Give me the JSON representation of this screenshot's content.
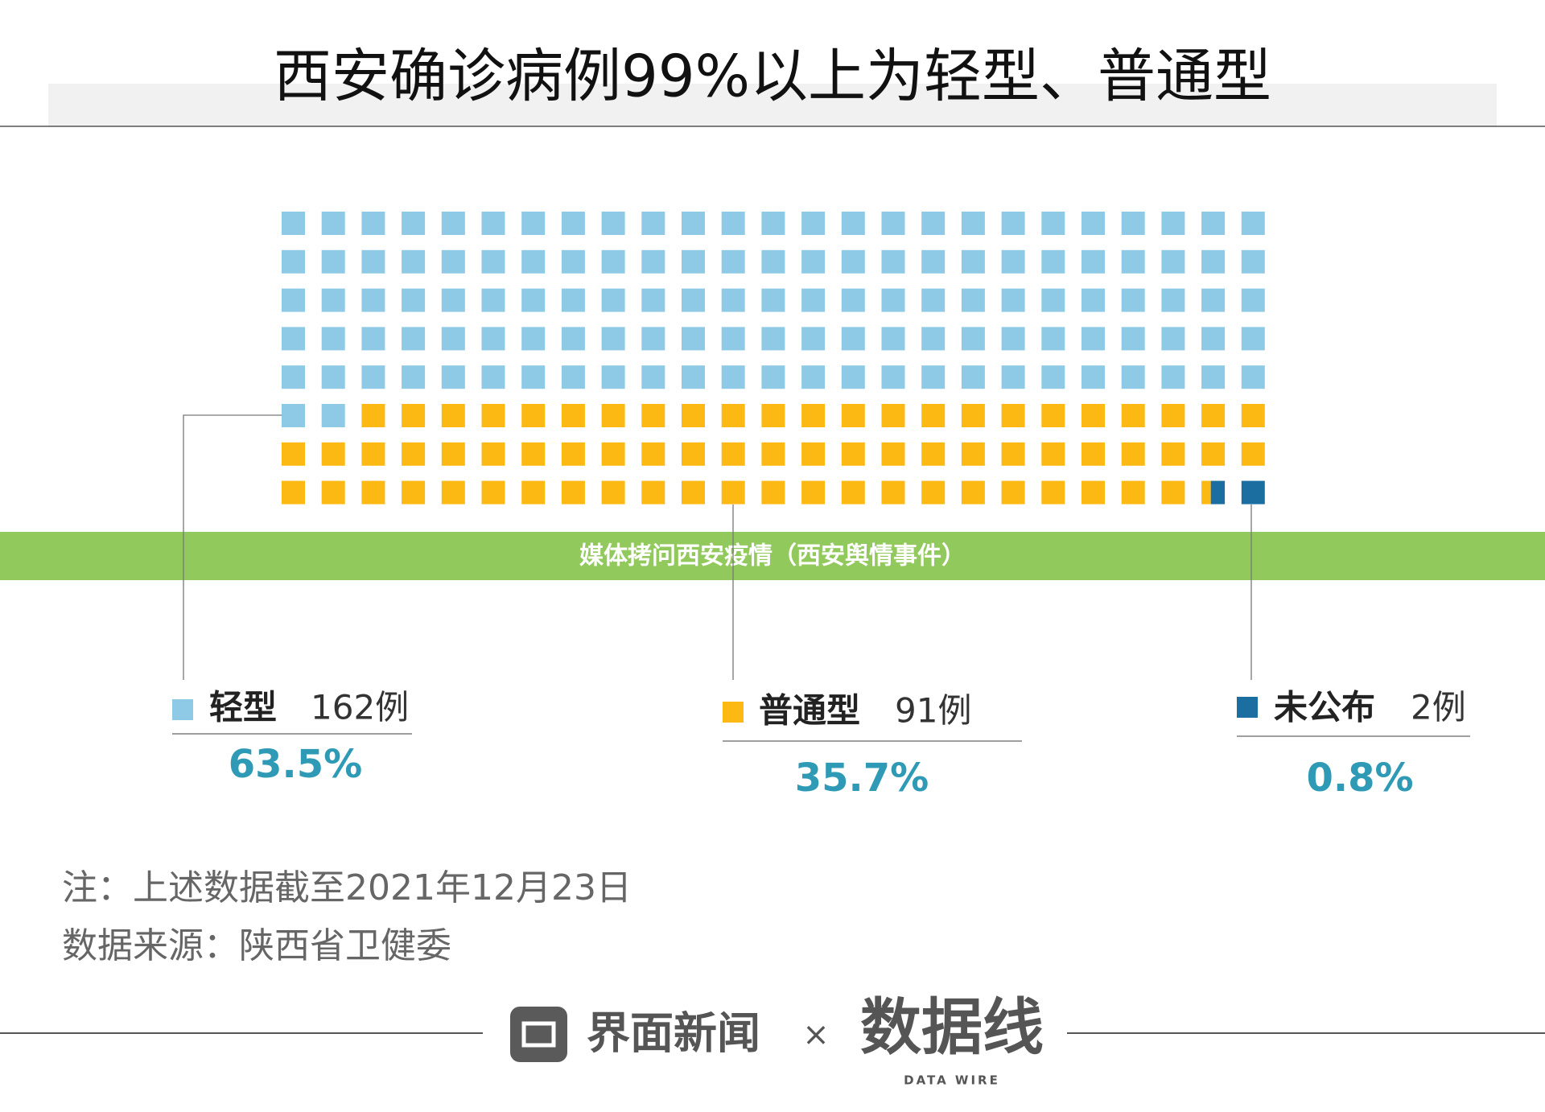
{
  "chart_data": {
    "type": "waffle",
    "title": "西安确诊病例99%以上为轻型、普通型",
    "rows": 8,
    "columns": 25,
    "categories": [
      "轻型",
      "普通型",
      "未公布"
    ],
    "values": [
      63.5,
      35.7,
      0.8
    ],
    "value_labels": [
      "63.5%",
      "35.7%",
      "0.8%"
    ],
    "counts": [
      162,
      91,
      2
    ],
    "count_labels": [
      "162例",
      "91例",
      "2例"
    ],
    "colors": [
      "#8ecae6",
      "#fdb913",
      "#1b6ea0"
    ]
  },
  "banner": "媒体拷问西安疫情（西安舆情事件）",
  "notes": [
    "注：上述数据截至2021年12月23日",
    "数据来源：陕西省卫健委"
  ],
  "footer": {
    "brand": "界面新闻",
    "separator": "×",
    "partner": "数据线",
    "partner_sub": "DATA WIRE"
  }
}
